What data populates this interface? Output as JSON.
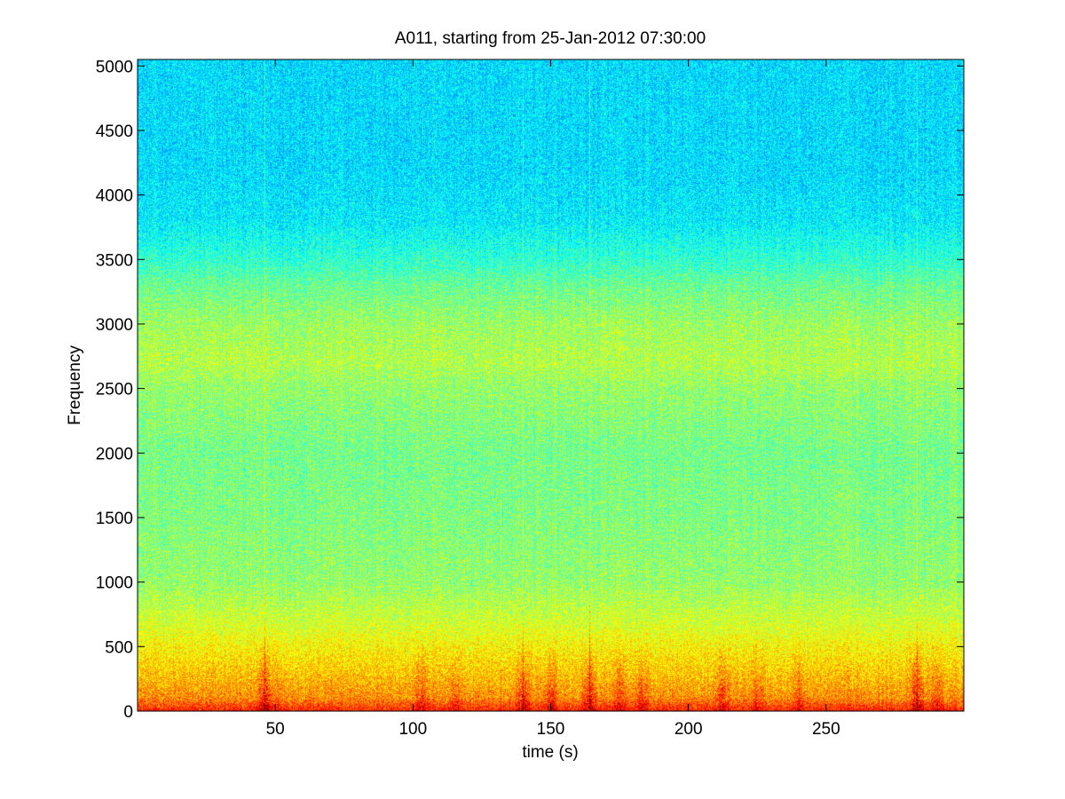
{
  "chart_data": {
    "type": "heatmap",
    "title": "A011, starting from 25-Jan-2012 07:30:00",
    "xlabel": "time (s)",
    "ylabel": "Frequency",
    "xlim": [
      0,
      300
    ],
    "ylim": [
      0,
      5050
    ],
    "xticks": [
      50,
      100,
      150,
      200,
      250
    ],
    "xtick_labels": [
      "50",
      "100",
      "150",
      "200",
      "250"
    ],
    "yticks": [
      0,
      500,
      1000,
      1500,
      2000,
      2500,
      3000,
      3500,
      4000,
      4500,
      5000
    ],
    "ytick_labels": [
      "0",
      "500",
      "1000",
      "1500",
      "2000",
      "2500",
      "3000",
      "3500",
      "4000",
      "4500",
      "5000"
    ],
    "grid": false,
    "colormap": "jet",
    "colors": {
      "high_energy": "#e41a1c",
      "mid_energy": "#ffff00",
      "low_energy": "#2ee6c8"
    },
    "description_bands": {
      "frequency_edges": [
        0,
        100,
        300,
        500,
        700,
        1000,
        1500,
        2000,
        2500,
        2700,
        3000,
        3300,
        3500,
        3800,
        4200,
        5050
      ],
      "levels": [
        0.85,
        0.74,
        0.68,
        0.63,
        0.58,
        0.52,
        0.5,
        0.49,
        0.52,
        0.55,
        0.53,
        0.48,
        0.42,
        0.36,
        0.34
      ]
    },
    "events": [
      {
        "time": 46,
        "level": 0.95
      },
      {
        "time": 51,
        "level": 0.7
      },
      {
        "time": 103,
        "level": 0.8
      },
      {
        "time": 115,
        "level": 0.75
      },
      {
        "time": 140,
        "level": 0.9
      },
      {
        "time": 150,
        "level": 0.85
      },
      {
        "time": 164,
        "level": 0.9
      },
      {
        "time": 175,
        "level": 0.8
      },
      {
        "time": 183,
        "level": 0.8
      },
      {
        "time": 212,
        "level": 0.85
      },
      {
        "time": 225,
        "level": 0.75
      },
      {
        "time": 240,
        "level": 0.75
      },
      {
        "time": 283,
        "level": 0.95
      },
      {
        "time": 290,
        "level": 0.8
      }
    ]
  }
}
